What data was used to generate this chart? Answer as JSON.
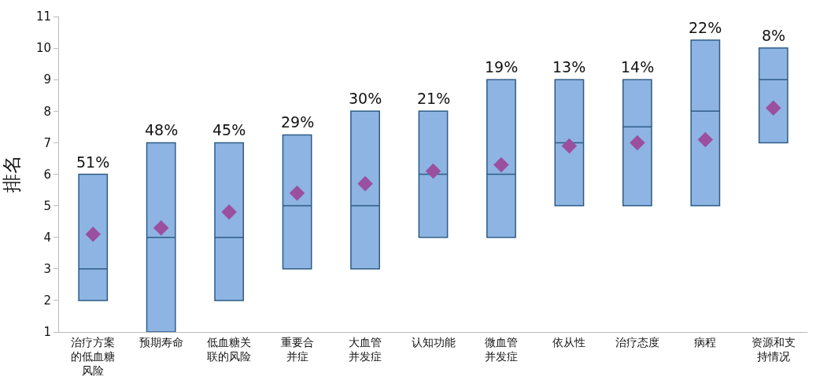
{
  "chart_data": {
    "type": "box",
    "ylabel": "排名",
    "categories": [
      "治疗方案的低血糖风险",
      "预期寿命",
      "低血糖关联的风险",
      "重要合并症",
      "大血管并发症",
      "认知功能",
      "微血管并发症",
      "依从性",
      "治疗态度",
      "病程",
      "资源和支持情况"
    ],
    "series": [
      {
        "color": "#8db4e2",
        "boxes": [
          {
            "low": 2,
            "q1": 2,
            "median": 3,
            "q3": 6,
            "high": 6
          },
          {
            "low": 1,
            "q1": 1,
            "median": 4,
            "q3": 7,
            "high": 7
          },
          {
            "low": 2,
            "q1": 2,
            "median": 4,
            "q3": 7,
            "high": 7
          },
          {
            "low": 3,
            "q1": 3,
            "median": 5,
            "q3": 7.25,
            "high": 7.25
          },
          {
            "low": 3,
            "q1": 3,
            "median": 5,
            "q3": 8,
            "high": 8
          },
          {
            "low": 4,
            "q1": 4,
            "median": 6,
            "q3": 8,
            "high": 8
          },
          {
            "low": 4,
            "q1": 4,
            "median": 6,
            "q3": 9,
            "high": 9
          },
          {
            "low": 5,
            "q1": 5,
            "median": 7,
            "q3": 9,
            "high": 9
          },
          {
            "low": 5,
            "q1": 5,
            "median": 7.5,
            "q3": 9,
            "high": 9
          },
          {
            "low": 5,
            "q1": 5,
            "median": 8,
            "q3": 10.25,
            "high": 10.25
          },
          {
            "low": 7,
            "q1": 7,
            "median": 9,
            "q3": 10,
            "high": 10
          }
        ]
      },
      {
        "type": "scatter",
        "color": "#9b4f9f",
        "marker": "diamond",
        "x": [
          "治疗方案的低血糖风险",
          "预期寿命",
          "低血糖关联的风险",
          "重要合并症",
          "大血管并发症",
          "认知功能",
          "微血管并发症",
          "依从性",
          "治疗态度",
          "病程",
          "资源和支持情况"
        ],
        "values": [
          4.1,
          4.3,
          4.8,
          5.4,
          5.7,
          6.1,
          6.3,
          6.9,
          7.0,
          7.1,
          8.1
        ]
      }
    ],
    "annotations": [
      {
        "text": "51%",
        "x": "治疗方案的低血糖风险",
        "y": 6
      },
      {
        "text": "48%",
        "x": "预期寿命",
        "y": 7
      },
      {
        "text": "45%",
        "x": "低血糖关联的风险",
        "y": 7
      },
      {
        "text": "29%",
        "x": "重要合并症",
        "y": 7.25
      },
      {
        "text": "30%",
        "x": "大血管并发症",
        "y": 8
      },
      {
        "text": "21%",
        "x": "认知功能",
        "y": 8
      },
      {
        "text": "19%",
        "x": "微血管并发症",
        "y": 9
      },
      {
        "text": "13%",
        "x": "依从性",
        "y": 9
      },
      {
        "text": "14%",
        "x": "治疗态度",
        "y": 9
      },
      {
        "text": "22%",
        "x": "病程",
        "y": 10.25
      },
      {
        "text": "8%",
        "x": "资源和支持情况",
        "y": 10
      }
    ],
    "ylim": [
      1,
      11
    ],
    "yticks": [
      1,
      2,
      3,
      4,
      5,
      6,
      7,
      8,
      9,
      10,
      11
    ]
  }
}
